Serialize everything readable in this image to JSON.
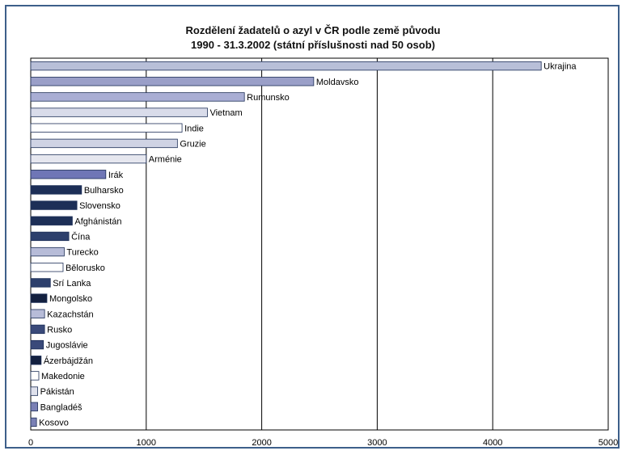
{
  "chart_data": {
    "type": "bar",
    "orientation": "horizontal",
    "title": "Rozdělení žadatelů o azyl v ČR podle země původu",
    "subtitle": "1990 - 31.3.2002 (státní příslušnosti nad 50 osob)",
    "xlim": [
      0,
      5000
    ],
    "x_ticks": [
      "0",
      "1000",
      "2000",
      "3000",
      "4000",
      "5000"
    ],
    "grid": "vertical",
    "legend": "none",
    "categories": [
      "Ukrajina",
      "Moldavsko",
      "Rumunsko",
      "Vietnam",
      "Indie",
      "Gruzie",
      "Arménie",
      "Irák",
      "Bulharsko",
      "Slovensko",
      "Afghánistán",
      "Čína",
      "Turecko",
      "Bělorusko",
      "Srí Lanka",
      "Mongolsko",
      "Kazachstán",
      "Rusko",
      "Jugoslávie",
      "Ázerbájdžán",
      "Makedonie",
      "Pákistán",
      "Bangladéš",
      "Kosovo"
    ],
    "values": [
      4420,
      2450,
      1850,
      1530,
      1310,
      1270,
      1000,
      650,
      440,
      400,
      360,
      330,
      290,
      280,
      170,
      140,
      120,
      120,
      110,
      90,
      70,
      60,
      60,
      50
    ],
    "colors": [
      "#b8bfd8",
      "#9a9fc8",
      "#a9aed4",
      "#d9dcea",
      "#ffffff",
      "#cfd3e4",
      "#e6e7ef",
      "#6f76b6",
      "#1d2f57",
      "#1d2f57",
      "#1d2f57",
      "#2c3f6c",
      "#b7bcd8",
      "#ffffff",
      "#2c3f6c",
      "#13203f",
      "#b7bcd8",
      "#3a4a7a",
      "#3a4a7a",
      "#13203f",
      "#ffffff",
      "#dfe1ec",
      "#7a80b5",
      "#7a80b5"
    ]
  }
}
